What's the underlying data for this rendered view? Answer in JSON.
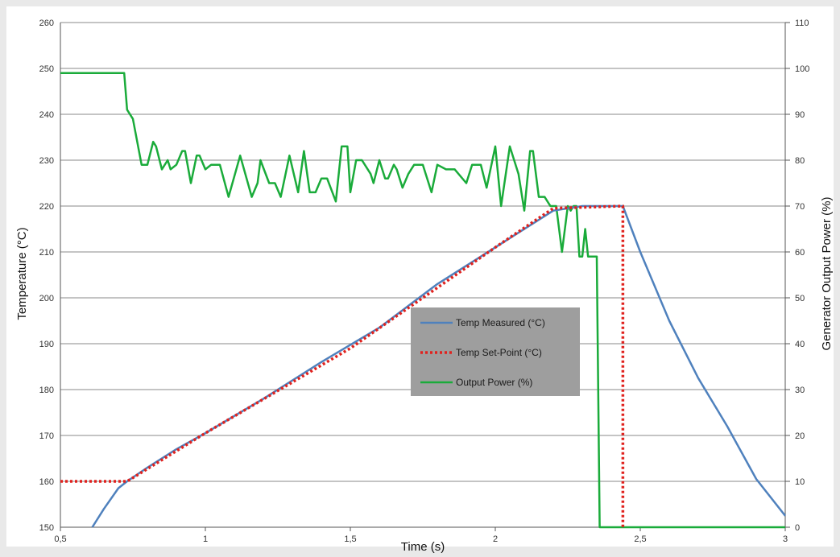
{
  "chart_data": {
    "type": "line",
    "xlabel": "Time (s)",
    "ylabel": "Temperature (°C)",
    "y2label": "Generator Output Power (%)",
    "xlim": [
      0.5,
      3
    ],
    "ylim": [
      150,
      260
    ],
    "y2lim": [
      0,
      110
    ],
    "x_ticks": [
      "0,5",
      "1",
      "1,5",
      "2",
      "2,5",
      "3"
    ],
    "y_ticks": [
      "150",
      "160",
      "170",
      "180",
      "190",
      "200",
      "210",
      "220",
      "230",
      "240",
      "250",
      "260"
    ],
    "y2_ticks": [
      "0",
      "10",
      "20",
      "30",
      "40",
      "50",
      "60",
      "70",
      "80",
      "90",
      "100",
      "110"
    ],
    "grid": true,
    "legend_position": "center",
    "series": [
      {
        "name": "Temp Measured (°C)",
        "axis": "left",
        "color": "#4f81bd",
        "style": "solid",
        "x": [
          0.61,
          0.65,
          0.7,
          0.73,
          0.8,
          0.9,
          1.0,
          1.2,
          1.4,
          1.6,
          1.8,
          2.0,
          2.2,
          2.3,
          2.44,
          2.5,
          2.6,
          2.7,
          2.8,
          2.9,
          3.0
        ],
        "y": [
          150,
          154,
          158.5,
          160,
          163,
          167,
          170.5,
          178,
          186,
          193.5,
          203,
          211,
          219,
          220,
          220,
          210,
          195,
          182.5,
          172,
          160.5,
          152.5
        ]
      },
      {
        "name": "Temp Set-Point (°C)",
        "axis": "left",
        "color": "#e0221e",
        "style": "dotted",
        "x": [
          0.5,
          0.72,
          0.73,
          1.0,
          1.5,
          2.0,
          2.2,
          2.44,
          2.44
        ],
        "y": [
          160,
          160,
          160,
          170.5,
          189,
          211,
          219.5,
          220,
          150
        ]
      },
      {
        "name": "Output Power (%)",
        "axis": "right",
        "color": "#1aab3a",
        "style": "solid",
        "x": [
          0.5,
          0.72,
          0.73,
          0.75,
          0.78,
          0.8,
          0.82,
          0.83,
          0.85,
          0.87,
          0.88,
          0.9,
          0.92,
          0.93,
          0.95,
          0.97,
          0.98,
          1.0,
          1.02,
          1.05,
          1.08,
          1.12,
          1.16,
          1.18,
          1.19,
          1.22,
          1.24,
          1.26,
          1.29,
          1.32,
          1.34,
          1.36,
          1.38,
          1.4,
          1.42,
          1.45,
          1.47,
          1.49,
          1.5,
          1.52,
          1.54,
          1.57,
          1.58,
          1.6,
          1.62,
          1.63,
          1.65,
          1.66,
          1.68,
          1.7,
          1.72,
          1.75,
          1.78,
          1.8,
          1.83,
          1.86,
          1.9,
          1.92,
          1.95,
          1.97,
          2.0,
          2.02,
          2.05,
          2.08,
          2.1,
          2.12,
          2.13,
          2.15,
          2.17,
          2.19,
          2.21,
          2.23,
          2.25,
          2.26,
          2.27,
          2.28,
          2.29,
          2.3,
          2.31,
          2.32,
          2.33,
          2.35,
          2.36,
          2.37,
          2.38,
          2.39,
          2.4,
          2.41,
          2.43,
          2.44,
          2.45,
          2.5,
          3.0
        ],
        "y": [
          99,
          99,
          91,
          89,
          79,
          79,
          84,
          83,
          78,
          80,
          78,
          79,
          82,
          82,
          75,
          81,
          81,
          78,
          79,
          79,
          72,
          81,
          72,
          75,
          80,
          75,
          75,
          72,
          81,
          73,
          82,
          73,
          73,
          76,
          76,
          71,
          83,
          83,
          73,
          80,
          80,
          77,
          75,
          80,
          76,
          76,
          79,
          78,
          74,
          77,
          79,
          79,
          73,
          79,
          78,
          78,
          75,
          79,
          79,
          74,
          83,
          70,
          83,
          77,
          69,
          82,
          82,
          72,
          72,
          70,
          70,
          60,
          70,
          69,
          70,
          70,
          59,
          59,
          65,
          59,
          59,
          59,
          0,
          0,
          0,
          0,
          0,
          0,
          0,
          0,
          0,
          0,
          0
        ]
      }
    ]
  }
}
